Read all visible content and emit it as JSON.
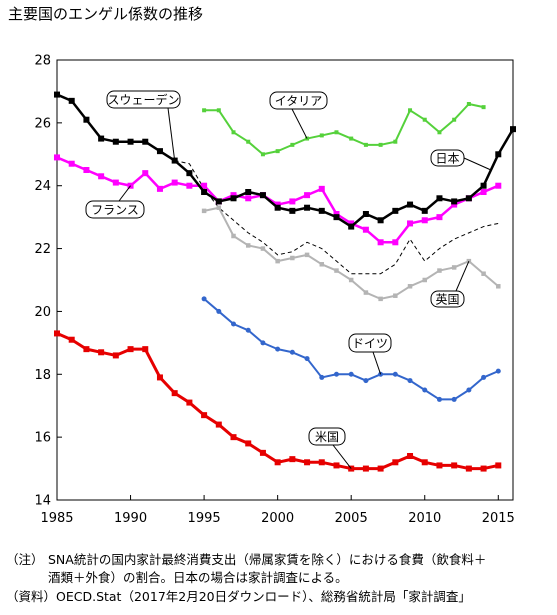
{
  "chart_data": {
    "type": "line",
    "title": "主要国のエンゲル係数の推移",
    "xlabel": "",
    "ylabel": "",
    "xlim": [
      1985,
      2016
    ],
    "ylim": [
      14,
      28
    ],
    "xticks": [
      1985,
      1990,
      1995,
      2000,
      2005,
      2010,
      2015
    ],
    "yticks": [
      14,
      16,
      18,
      20,
      22,
      24,
      26,
      28
    ],
    "grid": false,
    "legend": "inline-callouts",
    "series": [
      {
        "name": "日本",
        "color": "#000000",
        "style": "solid",
        "marker": "square",
        "x": [
          1985,
          1986,
          1987,
          1988,
          1989,
          1990,
          1991,
          1992,
          1993,
          1994,
          1995,
          1996,
          1997,
          1998,
          1999,
          2000,
          2001,
          2002,
          2003,
          2004,
          2005,
          2006,
          2007,
          2008,
          2009,
          2010,
          2011,
          2012,
          2013,
          2014,
          2015,
          2016
        ],
        "y": [
          26.9,
          26.7,
          26.1,
          25.5,
          25.4,
          25.4,
          25.4,
          25.1,
          24.8,
          24.4,
          23.8,
          23.5,
          23.6,
          23.8,
          23.7,
          23.3,
          23.2,
          23.3,
          23.2,
          23.0,
          22.7,
          23.1,
          22.9,
          23.2,
          23.4,
          23.2,
          23.6,
          23.5,
          23.6,
          24.0,
          25.0,
          25.8
        ]
      },
      {
        "name": "フランス",
        "color": "#ff00ff",
        "style": "solid",
        "marker": "square",
        "x": [
          1985,
          1986,
          1987,
          1988,
          1989,
          1990,
          1991,
          1992,
          1993,
          1994,
          1995,
          1996,
          1997,
          1998,
          1999,
          2000,
          2001,
          2002,
          2003,
          2004,
          2005,
          2006,
          2007,
          2008,
          2009,
          2010,
          2011,
          2012,
          2013,
          2014,
          2015
        ],
        "y": [
          24.9,
          24.7,
          24.5,
          24.3,
          24.1,
          24.0,
          24.4,
          23.9,
          24.1,
          24.0,
          24.0,
          23.5,
          23.7,
          23.6,
          23.7,
          23.4,
          23.5,
          23.7,
          23.9,
          23.1,
          22.8,
          22.6,
          22.2,
          22.2,
          22.8,
          22.9,
          23.0,
          23.4,
          23.6,
          23.8,
          24.0
        ]
      },
      {
        "name": "スウェーデン",
        "color": "#000000",
        "style": "dashed",
        "marker": "none",
        "x": [
          1993,
          1994,
          1995,
          1996,
          1997,
          1998,
          1999,
          2000,
          2001,
          2002,
          2003,
          2004,
          2005,
          2006,
          2007,
          2008,
          2009,
          2010,
          2011,
          2012,
          2013,
          2014,
          2015
        ],
        "y": [
          24.8,
          24.7,
          23.9,
          23.3,
          22.9,
          22.5,
          22.2,
          21.8,
          21.9,
          22.2,
          22.0,
          21.6,
          21.2,
          21.2,
          21.2,
          21.5,
          22.3,
          21.6,
          22.0,
          22.3,
          22.5,
          22.7,
          22.8
        ]
      },
      {
        "name": "イタリア",
        "color": "#55d13b",
        "style": "solid",
        "marker": "square",
        "x": [
          1995,
          1996,
          1997,
          1998,
          1999,
          2000,
          2001,
          2002,
          2003,
          2004,
          2005,
          2006,
          2007,
          2008,
          2009,
          2010,
          2011,
          2012,
          2013,
          2014
        ],
        "y": [
          26.4,
          26.4,
          25.7,
          25.4,
          25.0,
          25.1,
          25.3,
          25.5,
          25.6,
          25.7,
          25.5,
          25.3,
          25.3,
          25.4,
          26.4,
          26.1,
          25.7,
          26.1,
          26.6,
          26.5
        ]
      },
      {
        "name": "英国",
        "color": "#b4b4b4",
        "style": "solid",
        "marker": "square",
        "x": [
          1995,
          1996,
          1997,
          1998,
          1999,
          2000,
          2001,
          2002,
          2003,
          2004,
          2005,
          2006,
          2007,
          2008,
          2009,
          2010,
          2011,
          2012,
          2013,
          2014,
          2015
        ],
        "y": [
          23.2,
          23.3,
          22.4,
          22.1,
          22.0,
          21.6,
          21.7,
          21.8,
          21.5,
          21.3,
          21.0,
          20.6,
          20.4,
          20.5,
          20.8,
          21.0,
          21.3,
          21.4,
          21.6,
          21.2,
          20.8
        ]
      },
      {
        "name": "ドイツ",
        "color": "#3366cc",
        "style": "solid",
        "marker": "circle",
        "x": [
          1995,
          1996,
          1997,
          1998,
          1999,
          2000,
          2001,
          2002,
          2003,
          2004,
          2005,
          2006,
          2007,
          2008,
          2009,
          2010,
          2011,
          2012,
          2013,
          2014,
          2015
        ],
        "y": [
          20.4,
          20.0,
          19.6,
          19.4,
          19.0,
          18.8,
          18.7,
          18.5,
          17.9,
          18.0,
          18.0,
          17.8,
          18.0,
          18.0,
          17.8,
          17.5,
          17.2,
          17.2,
          17.5,
          17.9,
          18.1
        ]
      },
      {
        "name": "米国",
        "color": "#e60000",
        "style": "solid",
        "marker": "square",
        "x": [
          1985,
          1986,
          1987,
          1988,
          1989,
          1990,
          1991,
          1992,
          1993,
          1994,
          1995,
          1996,
          1997,
          1998,
          1999,
          2000,
          2001,
          2002,
          2003,
          2004,
          2005,
          2006,
          2007,
          2008,
          2009,
          2010,
          2011,
          2012,
          2013,
          2014,
          2015
        ],
        "y": [
          19.3,
          19.1,
          18.8,
          18.7,
          18.6,
          18.8,
          18.8,
          17.9,
          17.4,
          17.1,
          16.7,
          16.4,
          16.0,
          15.8,
          15.5,
          15.2,
          15.3,
          15.2,
          15.2,
          15.1,
          15.0,
          15.0,
          15.0,
          15.2,
          15.4,
          15.2,
          15.1,
          15.1,
          15.0,
          15.0,
          15.1
        ]
      }
    ]
  },
  "footnotes": {
    "note_label": "（注）",
    "note_lines": [
      "SNA統計の国内家計最終消費支出（帰属家賃を除く）における食費（飲食料＋",
      "酒類＋外食）の割合。日本の場合は家計調査による。"
    ],
    "source_label": "（資料）",
    "source_text": "OECD.Stat（2017年2月20日ダウンロード）、総務省統計局「家計調査」"
  }
}
